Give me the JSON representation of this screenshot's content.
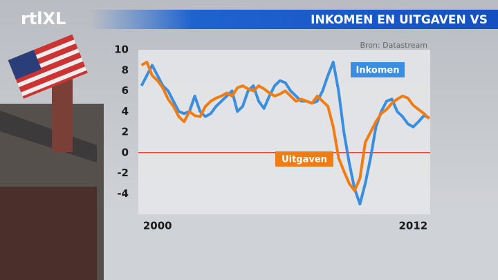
{
  "chart_data": {
    "type": "line",
    "brand": "rtlXL",
    "title": "INKOMEN EN UITGAVEN VS",
    "source": "Bron: Datastream",
    "x": [
      1999.25,
      1999.5,
      1999.75,
      2000.0,
      2000.25,
      2000.5,
      2000.75,
      2001.0,
      2001.25,
      2001.5,
      2001.75,
      2002.0,
      2002.25,
      2002.5,
      2002.75,
      2003.0,
      2003.25,
      2003.5,
      2003.75,
      2004.0,
      2004.25,
      2004.5,
      2004.75,
      2005.0,
      2005.25,
      2005.5,
      2005.75,
      2006.0,
      2006.25,
      2006.5,
      2006.75,
      2007.0,
      2007.25,
      2007.5,
      2007.75,
      2008.0,
      2008.25,
      2008.5,
      2008.75,
      2009.0,
      2009.25,
      2009.5,
      2009.75,
      2010.0,
      2010.25,
      2010.5,
      2010.75,
      2011.0,
      2011.25,
      2011.5,
      2011.75,
      2012.0,
      2012.25,
      2012.5,
      2012.75
    ],
    "series": [
      {
        "name": "Inkomen",
        "color": "#3a8ee0",
        "values": [
          6.5,
          7.5,
          8.5,
          7.5,
          6.5,
          6,
          5,
          4,
          3.8,
          4,
          5.5,
          4,
          3.5,
          3.8,
          4.5,
          5,
          5.5,
          6,
          4,
          4.5,
          6,
          6.5,
          5,
          4.3,
          5.5,
          6.5,
          7,
          6.8,
          6,
          5.5,
          5,
          5,
          4.8,
          5,
          6,
          7.5,
          8.8,
          6,
          2,
          -1,
          -3.5,
          -5,
          -3,
          -0.5,
          2.5,
          4,
          5,
          5.2,
          4,
          3.5,
          2.8,
          2.5,
          3,
          3.6,
          3.4
        ]
      },
      {
        "name": "Uitgaven",
        "color": "#f07d14",
        "values": [
          8.5,
          8.8,
          7.5,
          7,
          6.3,
          5.2,
          4.5,
          3.5,
          3,
          4,
          3.6,
          3.5,
          4.5,
          5,
          5.3,
          5.5,
          5.8,
          5.5,
          6.3,
          6.5,
          6.2,
          6,
          6.5,
          6.2,
          5.8,
          5.5,
          5.7,
          6,
          5.5,
          5,
          5.2,
          5,
          4.8,
          5.5,
          5,
          4.5,
          2.5,
          -0.5,
          -1.8,
          -3,
          -3.7,
          -2.5,
          1,
          2,
          3,
          3.8,
          4.2,
          4.8,
          5.2,
          5.5,
          5.3,
          4.6,
          4.2,
          3.8,
          3.3
        ]
      }
    ],
    "xlim": [
      1999.1,
      2012.8
    ],
    "xticks": [
      2000,
      2012
    ],
    "ylim": [
      -6,
      10
    ],
    "yticks": [
      10,
      8,
      6,
      4,
      2,
      0,
      -2,
      -4
    ],
    "reference_line": 0
  }
}
